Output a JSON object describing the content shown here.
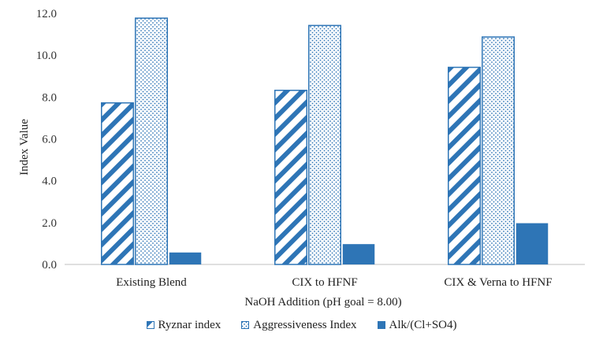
{
  "chart_data": {
    "type": "bar",
    "title": "",
    "xlabel": "NaOH Addition (pH goal = 8.00)",
    "ylabel": "Index Value",
    "ylim": [
      0,
      12
    ],
    "y_ticks": [
      "0.0",
      "2.0",
      "4.0",
      "6.0",
      "8.0",
      "10.0",
      "12.0"
    ],
    "grid": false,
    "legend_position": "bottom",
    "categories": [
      "Existing Blend",
      "CIX to HFNF",
      "CIX & Verna to HFNF"
    ],
    "series": [
      {
        "name": "Ryznar index",
        "values": [
          7.75,
          8.35,
          9.45
        ],
        "pattern": "diagonal-stripes",
        "color": "#2e75b6"
      },
      {
        "name": "Aggressiveness Index",
        "values": [
          11.8,
          11.45,
          10.9
        ],
        "pattern": "dots",
        "color": "#2e75b6"
      },
      {
        "name": "Alk/(Cl+SO4)",
        "values": [
          0.6,
          1.0,
          2.0
        ],
        "pattern": "solid",
        "color": "#2e75b6"
      }
    ]
  }
}
